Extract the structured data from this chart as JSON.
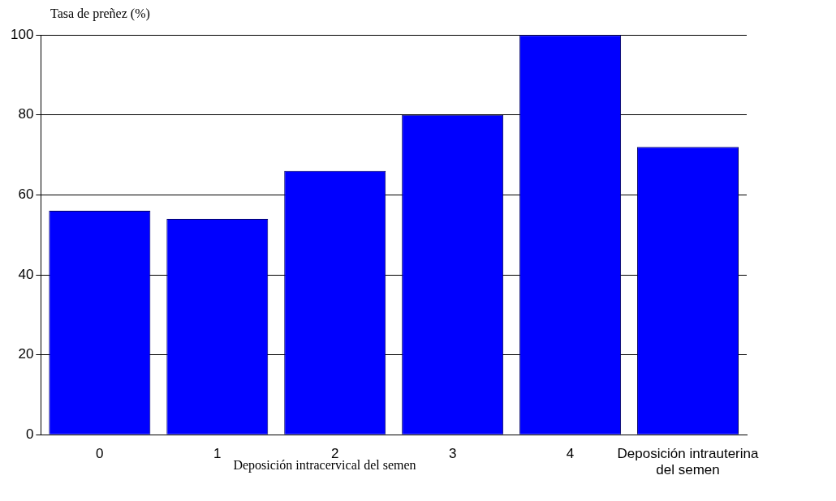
{
  "chart_data": {
    "type": "bar",
    "ylabel": "Tasa de preñez (%)",
    "xlabel": "Deposición intracervical del semen",
    "categories": [
      "0",
      "1",
      "2",
      "3",
      "4",
      "Deposición intrauterina del semen"
    ],
    "values": [
      56,
      54,
      66,
      80,
      100,
      72
    ],
    "color": "#0000ff",
    "ylim": [
      0,
      100
    ],
    "yticks": [
      0,
      20,
      40,
      60,
      80,
      100
    ],
    "grid": "y",
    "legend": false
  }
}
